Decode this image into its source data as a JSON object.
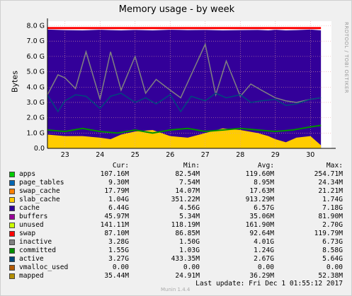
{
  "title": "Memory usage - by week",
  "side_label": "RRDTOOL / TOBI OETIKER",
  "ylabel": "Bytes",
  "legend_headers": [
    "Cur:",
    "Min:",
    "Avg:",
    "Max:"
  ],
  "legend": [
    {
      "name": "apps",
      "color": "#00cc00",
      "cur": "107.16M",
      "min": "82.54M",
      "avg": "119.60M",
      "max": "254.71M"
    },
    {
      "name": "page_tables",
      "color": "#0066b3",
      "cur": "9.30M",
      "min": "7.54M",
      "avg": "8.95M",
      "max": "24.34M"
    },
    {
      "name": "swap_cache",
      "color": "#ff8000",
      "cur": "17.79M",
      "min": "14.07M",
      "avg": "17.63M",
      "max": "21.21M"
    },
    {
      "name": "slab_cache",
      "color": "#ffcc00",
      "cur": "1.04G",
      "min": "351.22M",
      "avg": "913.29M",
      "max": "1.74G"
    },
    {
      "name": "cache",
      "color": "#330099",
      "cur": "6.44G",
      "min": "4.56G",
      "avg": "6.57G",
      "max": "7.18G"
    },
    {
      "name": "buffers",
      "color": "#990099",
      "cur": "45.97M",
      "min": "5.34M",
      "avg": "35.06M",
      "max": "81.90M"
    },
    {
      "name": "unused",
      "color": "#ccff00",
      "cur": "141.11M",
      "min": "118.19M",
      "avg": "161.90M",
      "max": "2.70G"
    },
    {
      "name": "swap",
      "color": "#ff0000",
      "cur": "87.10M",
      "min": "86.85M",
      "avg": "92.64M",
      "max": "119.79M"
    },
    {
      "name": "inactive",
      "color": "#808080",
      "cur": "3.28G",
      "min": "1.50G",
      "avg": "4.01G",
      "max": "6.73G"
    },
    {
      "name": "committed",
      "color": "#008f00",
      "cur": "1.55G",
      "min": "1.03G",
      "avg": "1.24G",
      "max": "8.58G"
    },
    {
      "name": "active",
      "color": "#00487d",
      "cur": "3.27G",
      "min": "433.35M",
      "avg": "2.67G",
      "max": "5.64G"
    },
    {
      "name": "vmalloc_used",
      "color": "#b35a00",
      "cur": "0.00",
      "min": "0.00",
      "avg": "0.00",
      "max": "0.00"
    },
    {
      "name": "mapped",
      "color": "#b38f00",
      "cur": "35.44M",
      "min": "24.91M",
      "avg": "36.29M",
      "max": "52.38M"
    }
  ],
  "footer_munin": "Munin 1.4.4",
  "footer_update": "Last update:  Fri Dec  1 01:55:12 2017",
  "chart_data": {
    "type": "area",
    "title": "Memory usage - by week",
    "ylabel": "Bytes",
    "ylim": [
      0,
      8.3
    ],
    "yunit": "G",
    "yticks": [
      "0.0",
      "1.0 G",
      "2.0 G",
      "3.0 G",
      "4.0 G",
      "5.0 G",
      "6.0 G",
      "7.0 G",
      "8.0 G"
    ],
    "ytick_values": [
      0,
      1,
      2,
      3,
      4,
      5,
      6,
      7,
      8
    ],
    "x_range": [
      22.5,
      30.6
    ],
    "xticks": [
      "23",
      "24",
      "25",
      "26",
      "27",
      "28",
      "29",
      "30"
    ],
    "xtick_values": [
      23,
      24,
      25,
      26,
      27,
      28,
      29,
      30
    ],
    "grid": true,
    "series": [
      {
        "name": "apps+page_tables+swap_cache+slab_cache",
        "color": "#ffcc00",
        "x": [
          22.5,
          23.0,
          23.5,
          24.0,
          24.3,
          24.6,
          25.0,
          25.5,
          26.0,
          26.5,
          27.0,
          27.5,
          28.0,
          28.5,
          28.8,
          29.0,
          29.3,
          29.6,
          30.0,
          30.3
        ],
        "values": [
          0.9,
          0.8,
          0.8,
          0.7,
          0.6,
          0.9,
          1.1,
          1.2,
          0.8,
          0.7,
          1.0,
          1.3,
          1.2,
          1.0,
          0.8,
          0.6,
          0.4,
          0.7,
          0.8,
          0.2
        ]
      },
      {
        "name": "cache",
        "color": "#330099",
        "x": [
          22.5,
          23.0,
          23.5,
          24.0,
          24.3,
          24.6,
          25.0,
          25.5,
          26.0,
          26.5,
          27.0,
          27.5,
          28.0,
          28.5,
          28.8,
          29.0,
          29.3,
          29.6,
          30.0,
          30.3
        ],
        "values": [
          7.75,
          7.72,
          7.7,
          7.74,
          7.72,
          7.7,
          7.73,
          7.7,
          7.74,
          7.72,
          7.73,
          7.7,
          7.72,
          7.73,
          7.7,
          7.74,
          7.7,
          7.72,
          7.75,
          7.7
        ]
      },
      {
        "name": "inactive",
        "color": "#808080",
        "x": [
          22.5,
          22.8,
          23.0,
          23.3,
          23.6,
          24.0,
          24.3,
          24.6,
          25.0,
          25.3,
          25.6,
          26.0,
          26.3,
          26.6,
          27.0,
          27.3,
          27.6,
          28.0,
          28.3,
          28.6,
          29.0,
          29.3,
          29.6,
          30.0,
          30.3
        ],
        "values": [
          3.5,
          4.8,
          4.6,
          3.9,
          6.3,
          3.2,
          6.3,
          3.8,
          6.0,
          3.6,
          4.5,
          3.8,
          3.3,
          4.8,
          6.8,
          3.5,
          5.7,
          3.4,
          4.2,
          3.8,
          3.3,
          3.1,
          3.0,
          3.2,
          3.3
        ]
      },
      {
        "name": "active",
        "color": "#00487d",
        "x": [
          22.5,
          22.8,
          23.0,
          23.3,
          23.6,
          24.0,
          24.3,
          24.6,
          25.0,
          25.3,
          25.6,
          26.0,
          26.3,
          26.6,
          27.0,
          27.3,
          27.6,
          28.0,
          28.3,
          28.6,
          29.0,
          29.3,
          29.6,
          30.0,
          30.3
        ],
        "values": [
          3.5,
          2.4,
          3.1,
          3.5,
          3.4,
          2.6,
          3.4,
          3.6,
          3.0,
          3.3,
          2.9,
          3.5,
          2.4,
          3.4,
          3.1,
          3.6,
          3.3,
          3.5,
          3.0,
          3.1,
          3.2,
          2.8,
          2.9,
          3.2,
          3.3
        ]
      },
      {
        "name": "committed",
        "color": "#008f00",
        "x": [
          22.5,
          23.0,
          23.5,
          24.0,
          24.5,
          25.0,
          25.5,
          26.0,
          26.5,
          27.0,
          27.5,
          28.0,
          28.5,
          29.0,
          29.5,
          30.0,
          30.3
        ],
        "values": [
          1.2,
          1.1,
          1.3,
          1.1,
          1.0,
          1.2,
          1.0,
          1.2,
          1.3,
          1.1,
          1.2,
          1.3,
          1.2,
          1.1,
          1.2,
          1.4,
          1.5
        ]
      },
      {
        "name": "swap",
        "color": "#ff0000",
        "x": [
          22.5,
          30.3
        ],
        "values": [
          7.85,
          7.85
        ]
      }
    ]
  }
}
